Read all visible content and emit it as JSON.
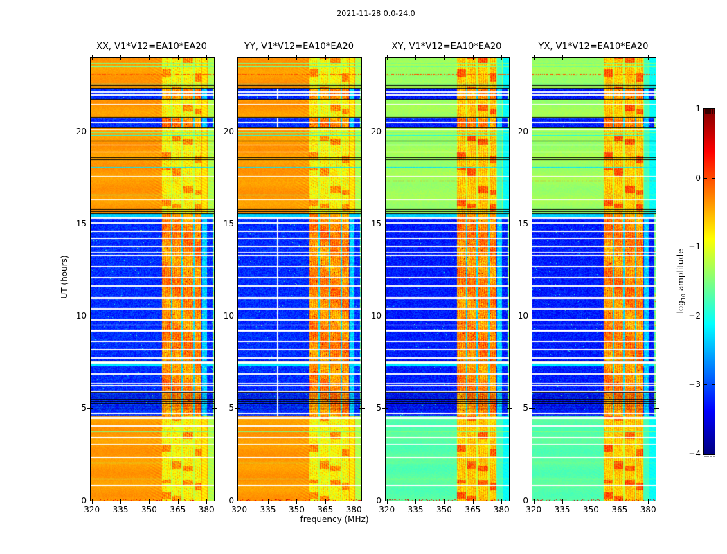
{
  "chart_data": {
    "type": "heatmap",
    "title": "2021-11-28 0.0-24.0",
    "xlabel": "frequency (MHz)",
    "ylabel": "UT (hours)",
    "colorbar_label": {
      "pre": "log",
      "sub": "10",
      "post": " amplitude"
    },
    "colormap": "jet",
    "under_color": "#000000",
    "bad_color": "#ffffff",
    "x_range": [
      319.4,
      383.9
    ],
    "y_range": [
      0,
      24
    ],
    "value_range": [
      -4,
      1
    ],
    "x_ticks": [
      320,
      335,
      350,
      365,
      380
    ],
    "y_ticks": [
      0,
      5,
      10,
      15,
      20
    ],
    "colorbar_ticks": [
      1,
      0,
      -1,
      -2,
      -3,
      -4
    ],
    "panels": [
      {
        "label": "XX, V1*V12=EA10*EA20",
        "group": "parallel",
        "dead_channels": []
      },
      {
        "label": "YY, V1*V12=EA10*EA20",
        "group": "parallel",
        "dead_channels": [
          340.2
        ]
      },
      {
        "label": "XY, V1*V12=EA10*EA20",
        "group": "cross",
        "dead_channels": []
      },
      {
        "label": "YX, V1*V12=EA10*EA20",
        "group": "cross",
        "dead_channels": []
      }
    ],
    "levels": {
      "day_parallel": -0.38,
      "day_cross_top": -1.35,
      "day_cross_bottom": -1.7,
      "night": -3.15,
      "night_cross_extra": -0.1,
      "noise_day": 0.07,
      "noise_night": 0.27
    },
    "time_bands": [
      {
        "ut": [
          0,
          4.58
        ],
        "type": "day"
      },
      {
        "ut": [
          4.58,
          5.02
        ],
        "type": "night"
      },
      {
        "ut": [
          5.02,
          5.92
        ],
        "type": "night"
      },
      {
        "ut": [
          5.92,
          7.3
        ],
        "type": "night"
      },
      {
        "ut": [
          7.3,
          7.43
        ],
        "type": "cyan",
        "value": -2.25
      },
      {
        "ut": [
          7.43,
          7.56
        ],
        "type": "white"
      },
      {
        "ut": [
          7.56,
          15.35
        ],
        "type": "night"
      },
      {
        "ut": [
          15.35,
          15.55
        ],
        "type": "cyan",
        "value": -2.35
      },
      {
        "ut": [
          15.55,
          15.82
        ],
        "type": "day"
      },
      {
        "ut": [
          15.82,
          20.26
        ],
        "type": "day"
      },
      {
        "ut": [
          20.26,
          20.73
        ],
        "type": "night"
      },
      {
        "ut": [
          20.73,
          21.79
        ],
        "type": "day"
      },
      {
        "ut": [
          21.79,
          22.33
        ],
        "type": "night"
      },
      {
        "ut": [
          22.33,
          24
        ],
        "type": "day"
      }
    ],
    "rfi": {
      "stripes": [
        [
          356.8,
          361.4
        ],
        [
          362.1,
          366.9
        ],
        [
          367.6,
          372.9
        ],
        [
          373.6,
          377.4
        ]
      ],
      "gaps": [
        361.75,
        367.25,
        373.25
      ],
      "gap_halfwidth": 0.35,
      "cyan_strip": [
        377.7,
        380.3
      ],
      "edge_zone_start": 380.8,
      "values": {
        "night_stripe": -0.3,
        "day_parallel_stripe": -0.85,
        "day_cross_stripe": -0.6,
        "patch_boost": 0.55,
        "gap_night": -2.3,
        "gap_day": -1.2,
        "cyan_strip_night": -2.35,
        "after_day_parallel": -0.75,
        "edge_day_parallel": -1.25,
        "after_day_cross": -1.8,
        "edge_day_cross": -2.1
      }
    },
    "moire": {
      "amp_parallel": 0.1,
      "amp_cross": 0.05,
      "start_freq": 347
    },
    "white_lines": [
      {
        "ut": 22.16,
        "w": 2
      },
      {
        "ut": 22.01,
        "w": 2
      },
      {
        "ut": 21.5,
        "w": 1
      },
      {
        "ut": 20.52,
        "w": 2
      },
      {
        "ut": 20.1,
        "w": 1
      },
      {
        "ut": 19.3,
        "w": 1
      },
      {
        "ut": 18.92,
        "w": 1
      },
      {
        "ut": 17.6,
        "w": 1
      },
      {
        "ut": 16.32,
        "w": 1
      },
      {
        "ut": 15.32,
        "w": 2
      },
      {
        "ut": 15.06,
        "w": 2
      },
      {
        "ut": 14.62,
        "w": 2
      },
      {
        "ut": 14.22,
        "w": 2
      },
      {
        "ut": 13.78,
        "w": 2
      },
      {
        "ut": 13.48,
        "w": 1
      },
      {
        "ut": 13.3,
        "w": 2
      },
      {
        "ut": 12.68,
        "w": 2
      },
      {
        "ut": 12.1,
        "w": 2
      },
      {
        "ut": 11.66,
        "w": 2
      },
      {
        "ut": 11.0,
        "w": 3
      },
      {
        "ut": 10.42,
        "w": 2
      },
      {
        "ut": 9.82,
        "w": 2
      },
      {
        "ut": 9.52,
        "w": 1
      },
      {
        "ut": 9.22,
        "w": 3
      },
      {
        "ut": 8.62,
        "w": 2
      },
      {
        "ut": 8.18,
        "w": 2
      },
      {
        "ut": 7.72,
        "w": 2
      },
      {
        "ut": 6.88,
        "w": 2
      },
      {
        "ut": 6.35,
        "w": 1
      },
      {
        "ut": 6.22,
        "w": 2
      },
      {
        "ut": 5.95,
        "w": 2
      },
      {
        "ut": 4.72,
        "w": 2
      },
      {
        "ut": 4.5,
        "w": 3
      },
      {
        "ut": 4.05,
        "w": 2
      },
      {
        "ut": 3.42,
        "w": 2
      },
      {
        "ut": 3.05,
        "w": 1
      },
      {
        "ut": 2.32,
        "w": 2
      },
      {
        "ut": 0.82,
        "w": 2
      }
    ],
    "black_lines": [
      {
        "ut": 22.52,
        "w": 1
      },
      {
        "ut": 22.36,
        "w": 1
      },
      {
        "ut": 21.76,
        "w": 1
      },
      {
        "ut": 20.79,
        "w": 1
      },
      {
        "ut": 20.24,
        "w": 1
      },
      {
        "ut": 19.52,
        "w": 1
      },
      {
        "ut": 18.62,
        "w": 1
      },
      {
        "ut": 18.5,
        "w": 1
      },
      {
        "ut": 15.79,
        "w": 1
      },
      {
        "ut": 15.68,
        "w": 1
      },
      {
        "ut": 15.57,
        "w": 1
      },
      {
        "ut": 7.58,
        "w": 1
      },
      {
        "ut": 5.86,
        "w": 1
      },
      {
        "ut": 5.74,
        "w": 1
      },
      {
        "ut": 5.62,
        "w": 1
      },
      {
        "ut": 5.5,
        "w": 1
      },
      {
        "ut": 5.38,
        "w": 1
      },
      {
        "ut": 5.26,
        "w": 1
      },
      {
        "ut": 5.12,
        "w": 1
      },
      {
        "ut": 4.99,
        "w": 1
      }
    ],
    "accent_lines": [
      {
        "ut": 23.72,
        "v": -1.5,
        "w": 1,
        "dashed": false
      },
      {
        "ut": 23.56,
        "v": -1.55,
        "w": 2,
        "dashed": false
      },
      {
        "ut": 23.1,
        "v": -0.05,
        "w": 2,
        "dashed": true
      },
      {
        "ut": 22.6,
        "v": -2.2,
        "w": 1,
        "dashed": false
      },
      {
        "ut": 19.98,
        "v": -1.6,
        "w": 1,
        "dashed": false
      },
      {
        "ut": 19.8,
        "v": -2.0,
        "w": 1,
        "dashed": false
      },
      {
        "ut": 18.1,
        "v": -2.25,
        "w": 1,
        "dashed": false
      },
      {
        "ut": 17.32,
        "v": -0.1,
        "w": 1,
        "dashed": true
      },
      {
        "ut": 16.6,
        "v": -1.5,
        "w": 1,
        "dashed": false
      },
      {
        "ut": 3.75,
        "v": -1.5,
        "w": 1,
        "dashed": false
      },
      {
        "ut": 2.05,
        "v": -1.35,
        "w": 1,
        "dashed": false
      },
      {
        "ut": 1.2,
        "v": -1.3,
        "w": 1,
        "dashed": false
      }
    ],
    "bottom_speckle": {
      "rows": 2,
      "prob": 0.18,
      "value_min": 0.2,
      "value_max": 0.8
    },
    "seed": 42
  }
}
